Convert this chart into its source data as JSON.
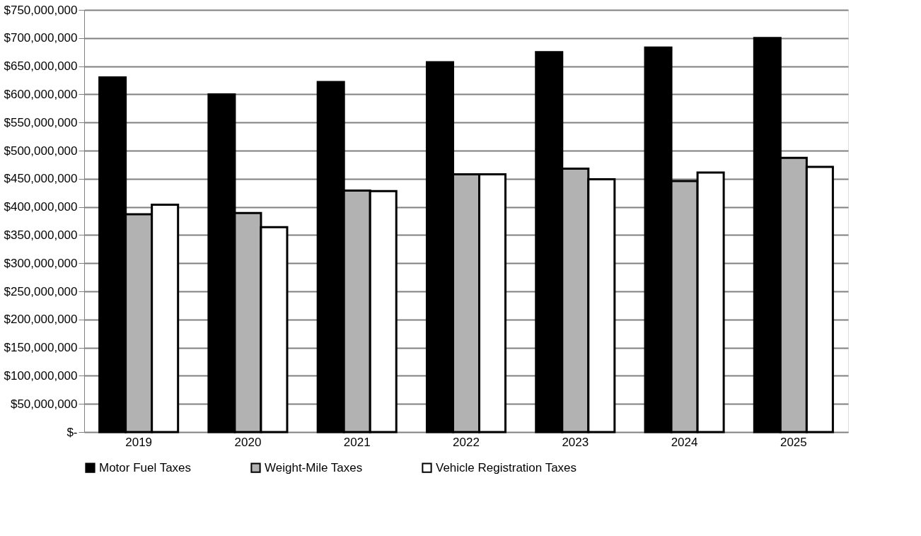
{
  "chart_data": {
    "type": "bar",
    "categories": [
      "2019",
      "2020",
      "2021",
      "2022",
      "2023",
      "2024",
      "2025"
    ],
    "series": [
      {
        "name": "Motor Fuel Taxes",
        "color": "#000000",
        "values": [
          630000000,
          600000000,
          622000000,
          657000000,
          675000000,
          683000000,
          700000000
        ]
      },
      {
        "name": "Weight-Mile Taxes",
        "color": "#b2b2b2",
        "values": [
          387000000,
          389000000,
          429000000,
          458000000,
          468000000,
          446000000,
          487000000
        ]
      },
      {
        "name": "Vehicle Registration Taxes",
        "color": "#ffffff",
        "values": [
          404000000,
          364000000,
          428000000,
          458000000,
          449000000,
          461000000,
          471000000
        ]
      }
    ],
    "ylim": [
      0,
      750000000
    ],
    "yticks": [
      {
        "value": 0,
        "label": "$-"
      },
      {
        "value": 50000000,
        "label": "$50,000,000"
      },
      {
        "value": 100000000,
        "label": "$100,000,000"
      },
      {
        "value": 150000000,
        "label": "$150,000,000"
      },
      {
        "value": 200000000,
        "label": "$200,000,000"
      },
      {
        "value": 250000000,
        "label": "$250,000,000"
      },
      {
        "value": 300000000,
        "label": "$300,000,000"
      },
      {
        "value": 350000000,
        "label": "$350,000,000"
      },
      {
        "value": 400000000,
        "label": "$400,000,000"
      },
      {
        "value": 450000000,
        "label": "$450,000,000"
      },
      {
        "value": 500000000,
        "label": "$500,000,000"
      },
      {
        "value": 550000000,
        "label": "$550,000,000"
      },
      {
        "value": 600000000,
        "label": "$600,000,000"
      },
      {
        "value": 650000000,
        "label": "$650,000,000"
      },
      {
        "value": 700000000,
        "label": "$700,000,000"
      },
      {
        "value": 750000000,
        "label": "$750,000,000"
      }
    ],
    "grid": "y",
    "legend": "bottom"
  }
}
